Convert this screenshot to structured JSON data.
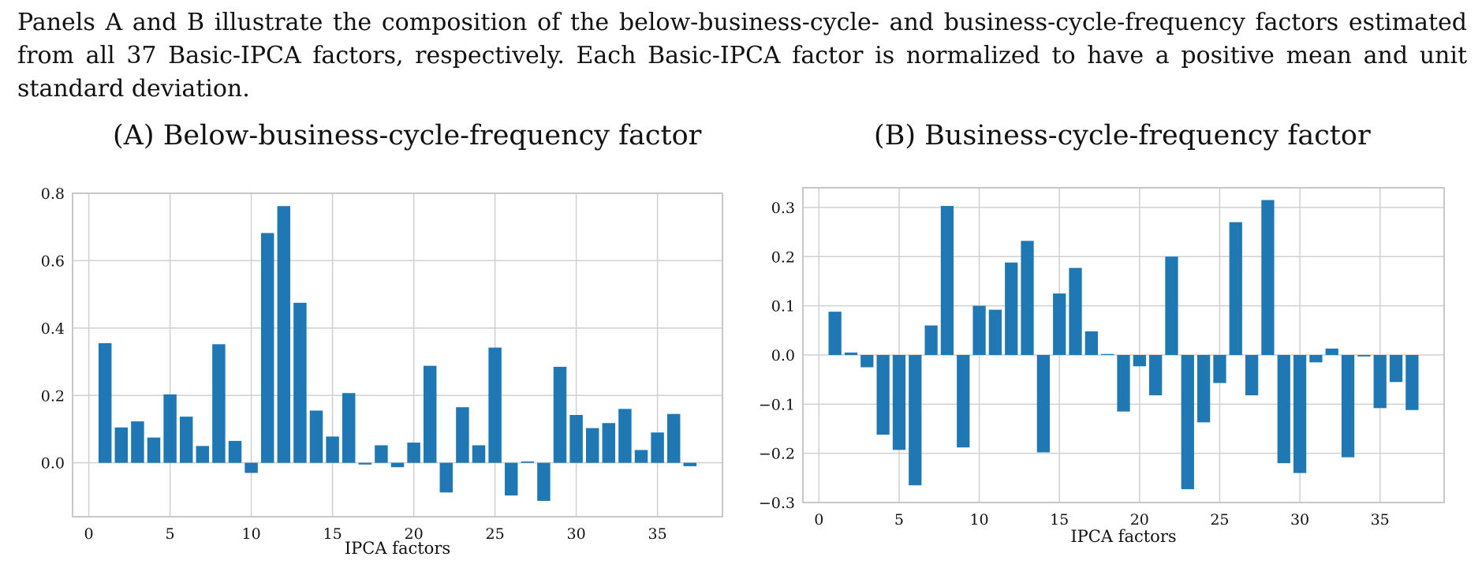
{
  "caption": "Panels A and B illustrate the composition of the below-business-cycle- and business-cycle-frequency factors estimated from all 37 Basic-IPCA factors, respectively. Each Basic-IPCA factor is normalized to have a positive mean and unit standard deviation.",
  "colors": {
    "bar": "#1f77b4",
    "grid": "#d0d0d0",
    "frame": "#c8c8c8"
  },
  "chart_data": [
    {
      "type": "bar",
      "title": "(A) Below-business-cycle-frequency factor",
      "xlabel": "IPCA factors",
      "ylabel": "",
      "grid": true,
      "xlim": [
        -1,
        39
      ],
      "ylim": [
        -0.16,
        0.8
      ],
      "xticks": [
        0,
        5,
        10,
        15,
        20,
        25,
        30,
        35
      ],
      "xtick_labels": [
        "0",
        "5",
        "10",
        "15",
        "20",
        "25",
        "30",
        "35"
      ],
      "yticks": [
        0.0,
        0.2,
        0.4,
        0.6,
        0.8
      ],
      "ytick_labels": [
        "0.0",
        "0.2",
        "0.4",
        "0.6",
        "0.8"
      ],
      "x": [
        1,
        2,
        3,
        4,
        5,
        6,
        7,
        8,
        9,
        10,
        11,
        12,
        13,
        14,
        15,
        16,
        17,
        18,
        19,
        20,
        21,
        22,
        23,
        24,
        25,
        26,
        27,
        28,
        29,
        30,
        31,
        32,
        33,
        34,
        35,
        36,
        37
      ],
      "values": [
        0.355,
        0.105,
        0.123,
        0.075,
        0.203,
        0.137,
        0.05,
        0.352,
        0.065,
        -0.03,
        0.682,
        0.762,
        0.475,
        0.155,
        0.078,
        0.207,
        -0.005,
        0.052,
        -0.013,
        0.06,
        0.288,
        -0.088,
        0.165,
        0.052,
        0.342,
        -0.097,
        0.004,
        -0.113,
        0.285,
        0.142,
        0.103,
        0.118,
        0.16,
        0.038,
        0.09,
        0.145,
        -0.01
      ]
    },
    {
      "type": "bar",
      "title": "(B) Business-cycle-frequency factor",
      "xlabel": "IPCA factors",
      "ylabel": "",
      "grid": true,
      "xlim": [
        -1,
        39
      ],
      "ylim": [
        -0.3,
        0.34
      ],
      "xticks": [
        0,
        5,
        10,
        15,
        20,
        25,
        30,
        35
      ],
      "xtick_labels": [
        "0",
        "5",
        "10",
        "15",
        "20",
        "25",
        "30",
        "35"
      ],
      "yticks": [
        -0.3,
        -0.2,
        -0.1,
        0.0,
        0.1,
        0.2,
        0.3
      ],
      "ytick_labels": [
        "−0.3",
        "−0.2",
        "−0.1",
        "0.0",
        "0.1",
        "0.2",
        "0.3"
      ],
      "x": [
        1,
        2,
        3,
        4,
        5,
        6,
        7,
        8,
        9,
        10,
        11,
        12,
        13,
        14,
        15,
        16,
        17,
        18,
        19,
        20,
        21,
        22,
        23,
        24,
        25,
        26,
        27,
        28,
        29,
        30,
        31,
        32,
        33,
        34,
        35,
        36,
        37
      ],
      "values": [
        0.088,
        0.005,
        -0.025,
        -0.162,
        -0.193,
        -0.265,
        0.06,
        0.303,
        -0.188,
        0.1,
        0.092,
        0.188,
        0.232,
        -0.198,
        0.125,
        0.177,
        0.048,
        0.002,
        -0.115,
        -0.023,
        -0.082,
        0.2,
        -0.273,
        -0.137,
        -0.057,
        0.27,
        -0.082,
        0.315,
        -0.22,
        -0.24,
        -0.015,
        0.013,
        -0.208,
        -0.003,
        -0.108,
        -0.055,
        -0.112
      ]
    }
  ]
}
